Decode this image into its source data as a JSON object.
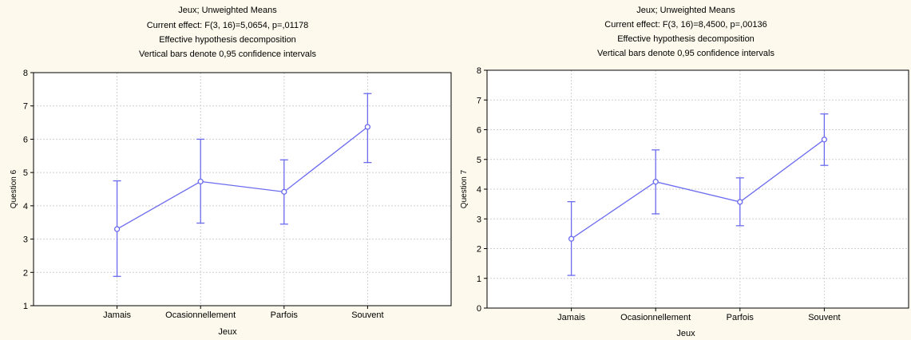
{
  "chart_data": [
    {
      "type": "line",
      "title": "Jeux; Unweighted Means",
      "subtitle_lines": [
        "Current effect: F(3, 16)=5,0654, p=,01178",
        "Effective hypothesis decomposition",
        "Vertical bars denote 0,95 confidence intervals"
      ],
      "xlabel": "Jeux",
      "ylabel": "Question 6",
      "categories": [
        "Jamais",
        "Ocasionnellement",
        "Parfois",
        "Souvent"
      ],
      "ylim": [
        1,
        8
      ],
      "yticks": [
        "1",
        "2",
        "3",
        "4",
        "5",
        "6",
        "7",
        "8"
      ],
      "grid": true,
      "series": [
        {
          "values": [
            3.3,
            4.73,
            4.42,
            6.37
          ],
          "lower": [
            1.88,
            3.48,
            3.45,
            5.3
          ],
          "upper": [
            4.75,
            6.0,
            5.38,
            7.37
          ]
        }
      ],
      "colors": {
        "line": "#6b6bf0",
        "grid": "#cfcfcf",
        "plot_bg": "#ffffff"
      }
    },
    {
      "type": "line",
      "title": "Jeux; Unweighted Means",
      "subtitle_lines": [
        "Current effect: F(3, 16)=8,4500, p=,00136",
        "Effective hypothesis decomposition",
        "Vertical bars denote 0,95 confidence intervals"
      ],
      "xlabel": "Jeux",
      "ylabel": "Question 7",
      "categories": [
        "Jamais",
        "Ocasionnellement",
        "Parfois",
        "Souvent"
      ],
      "ylim": [
        0,
        8
      ],
      "yticks": [
        "0",
        "1",
        "2",
        "3",
        "4",
        "5",
        "6",
        "7",
        "8"
      ],
      "grid": true,
      "series": [
        {
          "values": [
            2.33,
            4.25,
            3.57,
            5.67
          ],
          "lower": [
            1.1,
            3.17,
            2.77,
            4.8
          ],
          "upper": [
            3.58,
            5.32,
            4.38,
            6.53
          ]
        }
      ],
      "colors": {
        "line": "#6b6bf0",
        "grid": "#cfcfcf",
        "plot_bg": "#ffffff"
      }
    }
  ]
}
